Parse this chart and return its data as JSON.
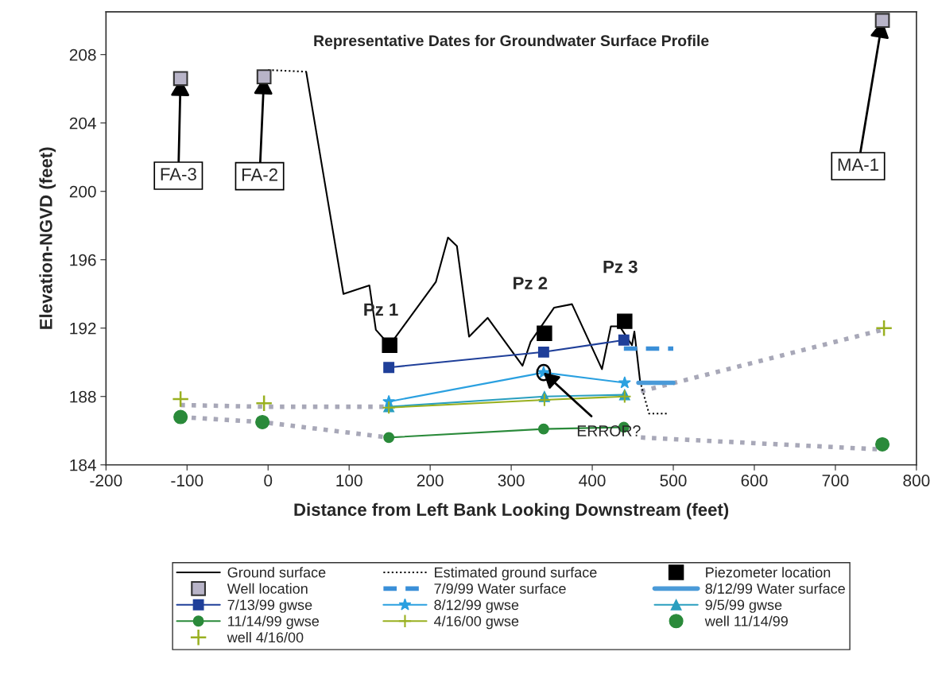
{
  "chart_data": {
    "type": "line",
    "title": "Representative Dates for Groundwater Surface Profile",
    "xlabel": "Distance from Left Bank Looking Downstream (feet)",
    "ylabel": "Elevation-NGVD (feet)",
    "xlim": [
      -200,
      800
    ],
    "ylim": [
      184,
      210.5
    ],
    "xticks": [
      -200,
      -100,
      0,
      100,
      200,
      300,
      400,
      500,
      600,
      700,
      800
    ],
    "yticks": [
      184,
      188,
      192,
      196,
      200,
      204,
      208
    ],
    "grid": false,
    "legend": "bottom",
    "series": [
      {
        "name": "Ground surface",
        "color": "#000000",
        "line_style": "solid",
        "marker": "none",
        "x": [
          47,
          93,
          125,
          133,
          150,
          207,
          222,
          233,
          248,
          271,
          314,
          324,
          353,
          375,
          412,
          423,
          434,
          449,
          452,
          459
        ],
        "values": [
          207.0,
          194.0,
          194.5,
          191.9,
          191.0,
          194.7,
          197.3,
          196.8,
          191.5,
          192.6,
          189.8,
          191.2,
          193.2,
          193.4,
          189.6,
          192.1,
          192.1,
          191.0,
          191.8,
          188.9
        ]
      },
      {
        "name": "Estimated ground surface",
        "color": "#000000",
        "line_style": "dotted",
        "marker": "none",
        "x": [
          0,
          47,
          null,
          459,
          470,
          493
        ],
        "values": [
          207.1,
          207.0,
          null,
          188.9,
          187.0,
          187.0
        ]
      },
      {
        "name": "Piezometer location",
        "type": "scatter",
        "color": "#000000",
        "marker": "square",
        "x": [
          150,
          341,
          440
        ],
        "values": [
          191.0,
          191.7,
          192.4
        ]
      },
      {
        "name": "Well location",
        "type": "scatter",
        "color": "#b8b4c8",
        "marker": "square",
        "x": [
          -108,
          -5,
          758
        ],
        "values": [
          206.6,
          206.7,
          210.0
        ]
      },
      {
        "name": "7/9/99 Water surface",
        "color": "#3a8fd8",
        "line_style": "dashed",
        "marker": "none",
        "x": [
          439,
          500
        ],
        "values": [
          190.8,
          190.8
        ]
      },
      {
        "name": "8/12/99 Water surface",
        "color": "#4a9ad8",
        "line_style": "solid",
        "marker": "none",
        "x": [
          457,
          500
        ],
        "values": [
          188.8,
          188.8
        ]
      },
      {
        "name": "7/13/99 gwse",
        "color": "#1f3f99",
        "line_style": "solid",
        "marker": "square",
        "x": [
          149,
          340,
          439
        ],
        "values": [
          189.7,
          190.6,
          191.3
        ]
      },
      {
        "name": "8/12/99 gwse",
        "color": "#2aa0e0",
        "line_style": "solid",
        "marker": "star",
        "x": [
          149,
          340,
          440
        ],
        "values": [
          187.7,
          189.4,
          188.8
        ]
      },
      {
        "name": "9/5/99 gwse",
        "color": "#2a9fbf",
        "line_style": "solid",
        "marker": "triangle",
        "x": [
          149,
          341,
          440
        ],
        "values": [
          187.4,
          188.0,
          188.1
        ]
      },
      {
        "name": "11/14/99 gwse",
        "color": "#2a8a3a",
        "line_style": "solid",
        "marker": "circle",
        "x": [
          149,
          340,
          439
        ],
        "values": [
          185.6,
          186.1,
          186.2
        ]
      },
      {
        "name": "4/16/00 gwse",
        "color": "#99b020",
        "line_style": "solid",
        "marker": "cross",
        "x": [
          149,
          341,
          440
        ],
        "values": [
          187.35,
          187.8,
          188.0
        ]
      },
      {
        "name": "well 11/14/99",
        "type": "scatter",
        "color": "#2a8a3a",
        "marker": "circle",
        "x": [
          -108,
          -7,
          758
        ],
        "values": [
          186.8,
          186.5,
          185.2
        ]
      },
      {
        "name": "well 4/16/00",
        "type": "scatter",
        "color": "#99b020",
        "marker": "cross",
        "x": [
          -108,
          -5,
          760
        ],
        "values": [
          187.85,
          187.6,
          192.0
        ]
      },
      {
        "color": "#a8a8b8",
        "line_style": "dotted",
        "marker": "none",
        "x": [
          -108,
          -7,
          149,
          null,
          460,
          758
        ],
        "values": [
          186.8,
          186.5,
          185.6,
          null,
          185.6,
          184.9
        ]
      },
      {
        "color": "#a8a8b8",
        "line_style": "dotted",
        "marker": "none",
        "x": [
          -108,
          -5,
          149,
          null,
          460,
          758
        ],
        "values": [
          187.5,
          187.4,
          187.4,
          null,
          188.3,
          191.9
        ]
      }
    ],
    "annotations": [
      {
        "text": "Pz 1",
        "x": 150,
        "y": 191.0
      },
      {
        "text": "Pz 2",
        "x": 341,
        "y": 191.7
      },
      {
        "text": "Pz 3",
        "x": 440,
        "y": 192.4
      },
      {
        "text": "FA-3",
        "x": -108,
        "y": 206.6
      },
      {
        "text": "FA-2",
        "x": -5,
        "y": 206.7
      },
      {
        "text": "MA-1",
        "x": 758,
        "y": 210.0
      },
      {
        "text": "ERROR?",
        "x": 340,
        "y": 189.4
      }
    ]
  }
}
